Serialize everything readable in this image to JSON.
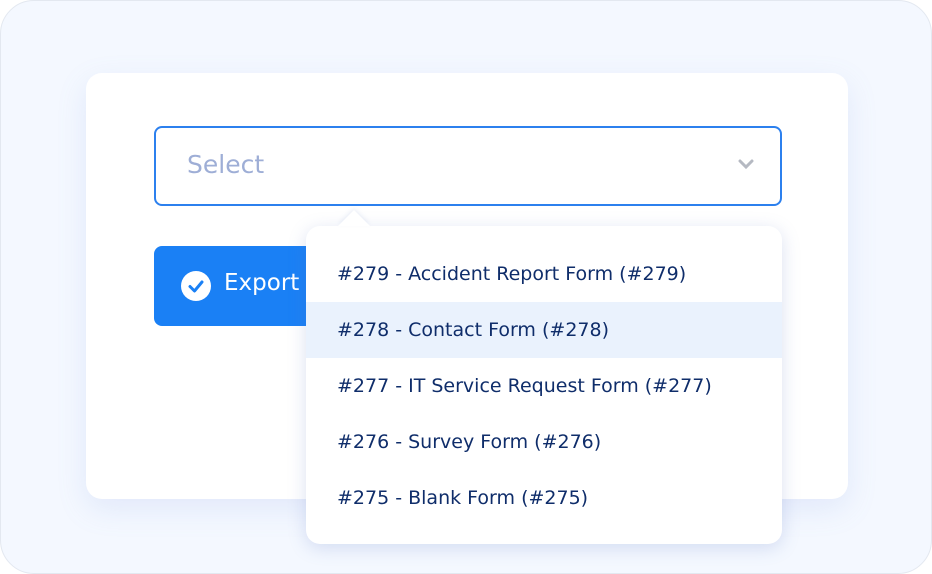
{
  "select": {
    "placeholder": "Select",
    "icon": "chevron-down-icon"
  },
  "export_button": {
    "label": "Export",
    "icon": "check-circle-icon"
  },
  "dropdown": {
    "highlighted_index": 1,
    "options": [
      {
        "label": "#279 - Accident Report Form (#279)"
      },
      {
        "label": "#278 - Contact Form (#278)"
      },
      {
        "label": "#277 - IT Service Request Form (#277)"
      },
      {
        "label": "#276 - Survey Form (#276)"
      },
      {
        "label": "#275 - Blank Form (#275)"
      }
    ]
  },
  "colors": {
    "accent": "#1a80f5",
    "option_text": "#0f2d6a",
    "highlight": "#eaf2fd",
    "placeholder": "#9eaed6"
  }
}
